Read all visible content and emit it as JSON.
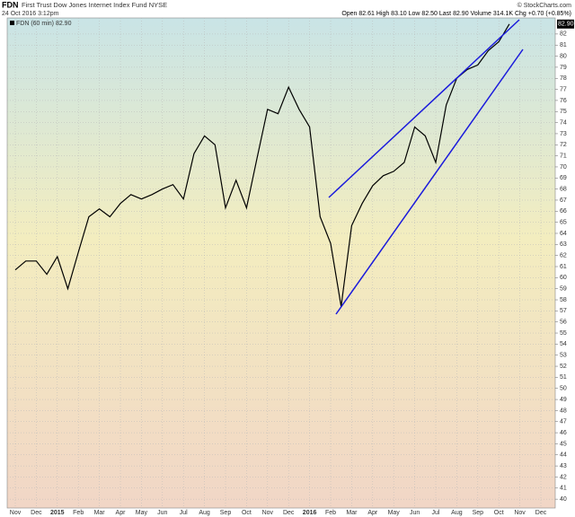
{
  "header": {
    "symbol": "FDN",
    "name": "First Trust Dow Jones Internet Index Fund NYSE",
    "date": "24 Oct 2016 3:12pm",
    "quote": "Open 82.61  High 83.10  Low 82.50  Last 82.90  Volume 314.1K  Chg +0.70 (+0.85%)",
    "source": "© StockCharts.com",
    "legend": "FDN (60 min) 82.90",
    "last_label": "82.90"
  },
  "chart_data": {
    "type": "line",
    "color": "#000000",
    "grid": true,
    "categories": [
      "Nov",
      null,
      "Dec",
      null,
      "2015",
      null,
      "Feb",
      null,
      "Mar",
      null,
      "Apr",
      null,
      "May",
      null,
      "Jun",
      null,
      "Jul",
      null,
      "Aug",
      null,
      "Sep",
      null,
      "Oct",
      null,
      "Nov",
      null,
      "Dec",
      null,
      "2016",
      null,
      "Feb",
      null,
      "Mar",
      null,
      "Apr",
      null,
      "May",
      null,
      "Jun",
      null,
      "Jul",
      null,
      "Aug",
      null,
      "Sep",
      null,
      "Oct",
      null,
      "Nov",
      null,
      "Dec",
      null
    ],
    "values": [
      60.7,
      61.5,
      61.5,
      60.3,
      61.9,
      59,
      62.3,
      65.5,
      66.2,
      65.5,
      66.7,
      67.5,
      67.1,
      67.5,
      68,
      68.4,
      67.1,
      71.2,
      72.8,
      72,
      66.3,
      68.8,
      66.3,
      70.8,
      75.2,
      74.8,
      77.2,
      75.2,
      73.6,
      65.5,
      63.1,
      57.4,
      64.7,
      66.7,
      68.3,
      69.2,
      69.6,
      70.4,
      73.6,
      72.8,
      70.4,
      75.6,
      78,
      78.8,
      79.2,
      80.5,
      81.3,
      82.9,
      null,
      null,
      null,
      null
    ],
    "ylim": [
      39.2,
      83.45
    ],
    "yticks": [
      40,
      41,
      42,
      43,
      44,
      45,
      46,
      47,
      48,
      49,
      50,
      51,
      52,
      53,
      54,
      55,
      56,
      57,
      58,
      59,
      60,
      61,
      62,
      63,
      64,
      65,
      66,
      67,
      68,
      69,
      70,
      71,
      72,
      73,
      74,
      75,
      76,
      77,
      78,
      79,
      80,
      81,
      82
    ]
  }
}
